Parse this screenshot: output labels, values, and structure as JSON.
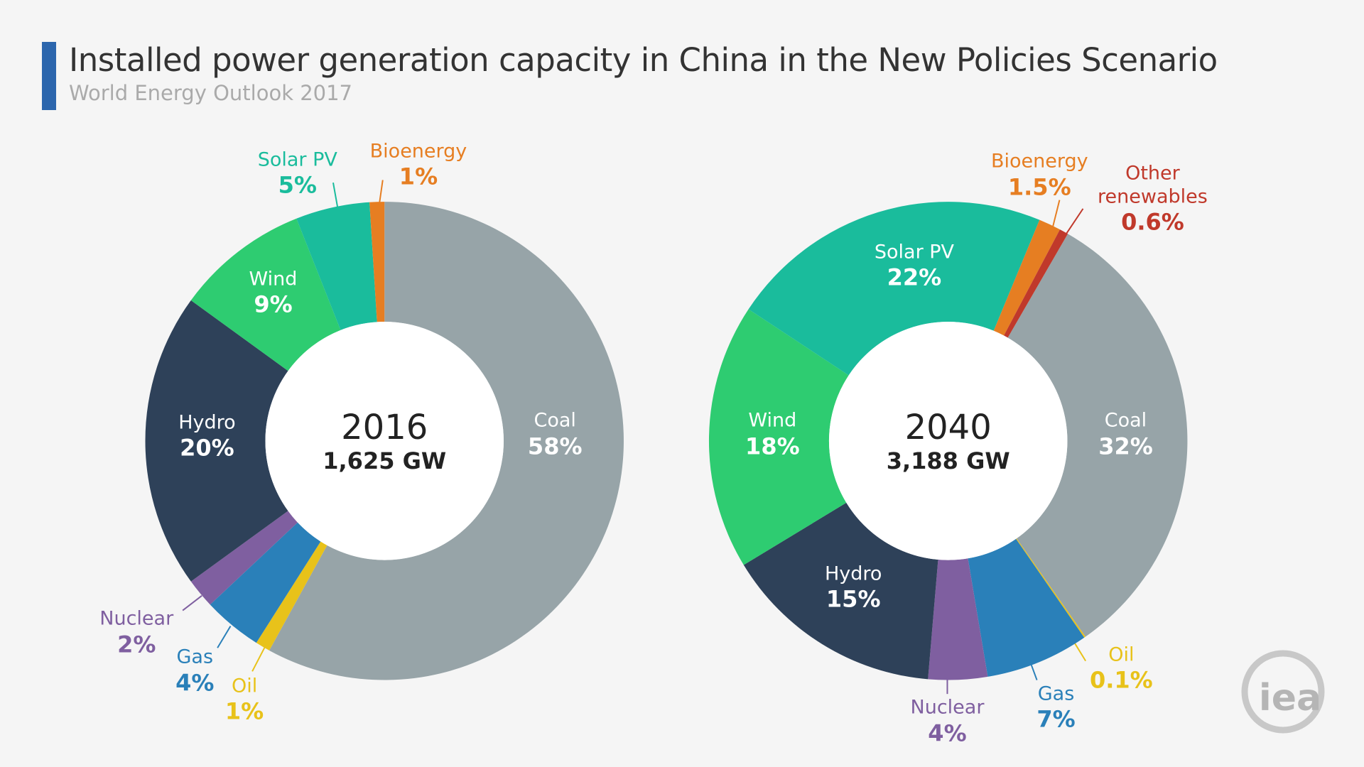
{
  "title": "Installed power generation capacity in China in the New Policies Scenario",
  "subtitle": "World Energy Outlook 2017",
  "logo": "iea",
  "chart_data": [
    {
      "type": "pie",
      "center_title": "2016",
      "center_subtitle": "1,625 GW",
      "categories": [
        "Coal",
        "Oil",
        "Gas",
        "Nuclear",
        "Hydro",
        "Wind",
        "Solar PV",
        "Bioenergy"
      ],
      "values": [
        58,
        1,
        4,
        2,
        20,
        9,
        5,
        1
      ],
      "value_labels": [
        "58%",
        "1%",
        "4%",
        "2%",
        "20%",
        "9%",
        "5%",
        "1%"
      ],
      "colors": [
        "#97a4a8",
        "#e8c21a",
        "#2a80b9",
        "#7f5fa0",
        "#2e4159",
        "#2ecc71",
        "#1abc9c",
        "#e67e22"
      ]
    },
    {
      "type": "pie",
      "center_title": "2040",
      "center_subtitle": "3,188 GW",
      "categories": [
        "Coal",
        "Oil",
        "Gas",
        "Nuclear",
        "Hydro",
        "Wind",
        "Solar PV",
        "Bioenergy",
        "Other renewables"
      ],
      "values": [
        32,
        0.1,
        7,
        4,
        15,
        18,
        22,
        1.5,
        0.6
      ],
      "value_labels": [
        "32%",
        "0.1%",
        "7%",
        "4%",
        "15%",
        "18%",
        "22%",
        "1.5%",
        "0.6%"
      ],
      "colors": [
        "#97a4a8",
        "#e8c21a",
        "#2a80b9",
        "#7f5fa0",
        "#2e4159",
        "#2ecc71",
        "#1abc9c",
        "#e67e22",
        "#c0392b"
      ]
    }
  ]
}
